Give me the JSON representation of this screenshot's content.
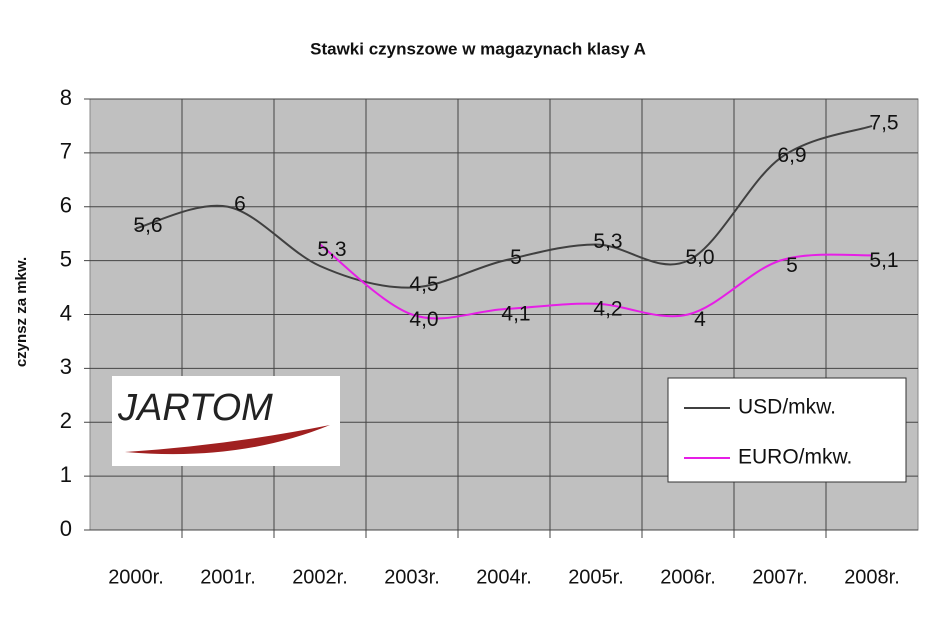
{
  "chart_data": {
    "type": "line",
    "title": "Stawki czynszowe w magazynach klasy A",
    "y_label": "czynsz za mkw.",
    "logo": "JARTOM",
    "categories": [
      "2000r.",
      "2001r.",
      "2002r.",
      "2003r.",
      "2004r.",
      "2005r.",
      "2006r.",
      "2007r.",
      "2008r."
    ],
    "series": [
      {
        "name": "USD/mkw.",
        "color": "#404040",
        "values": [
          5.6,
          6,
          4.9,
          4.5,
          5,
          5.3,
          5.0,
          6.9,
          7.5
        ],
        "value_labels": [
          "5,6",
          "6",
          null,
          "4,5",
          "5",
          "5,3",
          "5,0",
          "6,9",
          "7,5"
        ]
      },
      {
        "name": "EURO/mkw.",
        "color": "#e61ee6",
        "values": [
          null,
          null,
          5.3,
          4.0,
          4.1,
          4.2,
          4,
          5,
          5.1
        ],
        "value_labels": [
          null,
          null,
          "5,3",
          "4,0",
          "4,1",
          "4,2",
          "4",
          "5",
          "5,1"
        ]
      }
    ],
    "ylim": [
      0,
      8
    ],
    "yticks": [
      0,
      1,
      2,
      3,
      4,
      5,
      6,
      7,
      8
    ],
    "grid": true,
    "legend": "lower right"
  }
}
